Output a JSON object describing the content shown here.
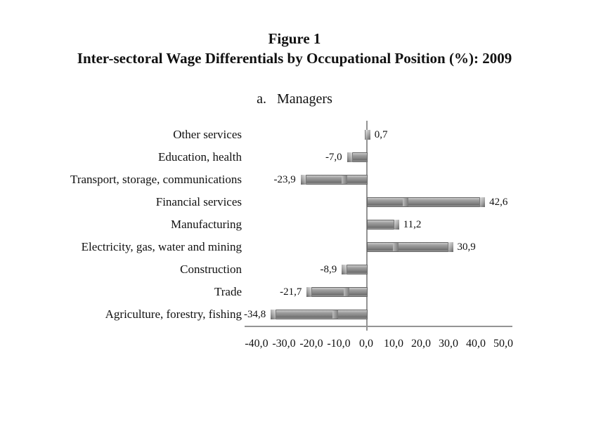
{
  "figure": {
    "title_line1": "Figure 1",
    "title_line2": "Inter-sectoral Wage Differentials by Occupational Position (%): 2009",
    "subtitle_marker": "a.",
    "subtitle_label": "Managers"
  },
  "chart_data": {
    "type": "bar",
    "orientation": "horizontal",
    "title": "a. Managers",
    "xlabel": "",
    "ylabel": "",
    "grid": false,
    "legend": null,
    "decimal_separator": ",",
    "categories": [
      "Other services",
      "Education, health",
      "Transport, storage, communications",
      "Financial services",
      "Manufacturing",
      "Electricity, gas, water and mining",
      "Construction",
      "Trade",
      "Agriculture, forestry, fishing"
    ],
    "values": [
      0.7,
      -7.0,
      -23.9,
      42.6,
      11.2,
      30.9,
      -8.9,
      -21.7,
      -34.8
    ],
    "value_labels": [
      "0,7",
      "-7,0",
      "-23,9",
      "42,6",
      "11,2",
      "30,9",
      "-8,9",
      "-21,7",
      "-34,8"
    ],
    "x_ticks": [
      -40,
      -30,
      -20,
      -10,
      0,
      10,
      20,
      30,
      40,
      50
    ],
    "x_tick_labels": [
      "-40,0",
      "-30,0",
      "-20,0",
      "-10,0",
      "0,0",
      "10,0",
      "20,0",
      "30,0",
      "40,0",
      "50,0"
    ],
    "xlim": [
      -44,
      53
    ],
    "bar_color": "#8a8a8a",
    "axis_color": "#949494",
    "text_color": "#111111"
  }
}
